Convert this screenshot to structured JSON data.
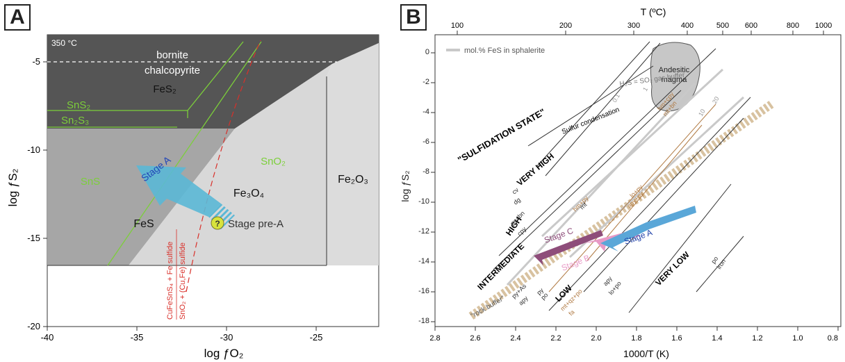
{
  "panel_a": {
    "label": "A",
    "temperature": "350 °C",
    "boundary_upper": "bornite",
    "boundary_lower": "chalcopyrite",
    "phases": {
      "fes2": "FeS₂",
      "sns2": "SnS₂",
      "sn2s3": "Sn₂S₃",
      "sns": "SnS",
      "sno2": "SnO₂",
      "fe3o4": "Fe₃O₄",
      "fe2o3": "Fe₂O₃",
      "fes": "FeS"
    },
    "stage_a": "Stage A",
    "stage_pre_a": "Stage pre-A",
    "stage_pre_a_marker": "?",
    "reaction_1": "CuFeSnS₄ + Fe sulfide",
    "reaction_2": "SnO₂ + (Cu,Fe) sulfide",
    "xlabel": "log ƒO₂",
    "ylabel": "log ƒS₂",
    "xticks": [
      "-40",
      "-35",
      "-30",
      "-25"
    ],
    "yticks": [
      "-5",
      "-10",
      "-15",
      "-20"
    ],
    "colors": {
      "dark": "#5a5a5a",
      "mid": "#a9a9a9",
      "light": "#dcdcdc",
      "green": "#7ccf3a",
      "red": "#d9302a",
      "stage_a": "#5bb8d6"
    }
  },
  "panel_b": {
    "label": "B",
    "top_axis_title": "T (ºC)",
    "top_ticks": [
      "100",
      "200",
      "300",
      "400",
      "500",
      "600",
      "800",
      "1000"
    ],
    "xlabel": "1000/T (K)",
    "ylabel": "log ƒS₂",
    "xticks": [
      "2.8",
      "2.6",
      "2.4",
      "2.2",
      "2.0",
      "1.8",
      "1.6",
      "1.4",
      "1.2",
      "1.0",
      "0.8"
    ],
    "yticks": [
      "0",
      "-2",
      "-4",
      "-6",
      "-8",
      "-10",
      "-12",
      "-14",
      "-16",
      "-18"
    ],
    "legend": "mol.% FeS in sphalerite",
    "magma": [
      "Andesitic",
      "magma"
    ],
    "state_title": "\"SULFIDATION STATE\"",
    "states": {
      "very_high": "VERY HIGH",
      "high": "HIGH",
      "intermediate": "INTERMEDIATE",
      "low": "LOW",
      "very_low": "VERY LOW"
    },
    "sulfur_condensation": "Sulfur condensation",
    "buffer": "H₂S = SO₂ gas buffer",
    "rock_buffer": "\"rock buffer\"",
    "stage_a": "Stage A",
    "stage_b": "Stage B",
    "stage_c": "Stage C",
    "reaction_labels": {
      "cv": "cv",
      "dg": "dg",
      "py_bn": "py+bn",
      "cpy": "cpy",
      "hm_py": "hm+py",
      "mt": "mt",
      "hm_cpy": "hm+cpy",
      "mt_bn": "mt+bn",
      "lo_py": "lo+py",
      "apy_py": "apy+py",
      "py_as": "py+As",
      "apy": "apy",
      "py": "py",
      "po": "po",
      "mt_qz_po": "mt+qz+po",
      "fa": "fa",
      "apy2": "apy",
      "lo_po": "lo+po",
      "po2": "po",
      "iron": "iron",
      "mol_0": "0.1",
      "mol_1": "1",
      "mol_10": "10",
      "mol_20": "20"
    },
    "colors": {
      "rock": "#d8c2a0",
      "stage_a": "#5aa7d8",
      "stage_b": "#e89ac6",
      "stage_c": "#8e4d7a",
      "gray": "#bdbdbd",
      "brown": "#b07a43"
    }
  }
}
